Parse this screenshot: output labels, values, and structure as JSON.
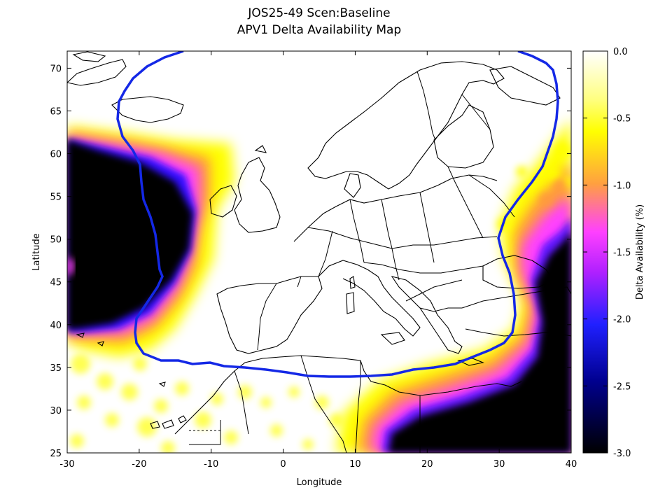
{
  "title_line1": "JOS25-49 Scen:Baseline",
  "title_line2": "APV1 Delta Availability Map",
  "x_axis": {
    "label": "Longitude",
    "ticks": [
      -30,
      -20,
      -10,
      0,
      10,
      20,
      30,
      40
    ]
  },
  "y_axis": {
    "label": "Latitude",
    "ticks": [
      25,
      30,
      35,
      40,
      45,
      50,
      55,
      60,
      65,
      70
    ]
  },
  "colorbar": {
    "label": "Delta Availability (%)",
    "ticks": [
      "0.0",
      "-0.5",
      "-1.0",
      "-1.5",
      "-2.0",
      "-2.5",
      "-3.0"
    ]
  },
  "colors": {
    "service_boundary": "#1428e6",
    "white": "#ffffff",
    "yellow": "#ffff00",
    "orange": "#ff9a3c",
    "magenta": "#ff40ff",
    "violet": "#8a1cff",
    "blue": "#1010ff",
    "black": "#000000"
  },
  "chart_data": {
    "type": "heatmap",
    "title": "JOS25-49 Scen:Baseline / APV1 Delta Availability Map",
    "xlabel": "Longitude",
    "ylabel": "Latitude",
    "xlim": [
      -30,
      40
    ],
    "ylim": [
      25,
      72
    ],
    "color_range": [
      -3.0,
      0.0
    ],
    "colorbar_label": "Delta Availability (%)",
    "regions": [
      {
        "area": "North Atlantic west of Iberia/British Isles",
        "value": -3.0
      },
      {
        "area": "Eastern Mediterranean / Levant / Egypt",
        "value": -3.0
      },
      {
        "area": "Central Europe within service boundary",
        "value": 0.0
      }
    ],
    "service_boundary_color": "#1428e6"
  }
}
